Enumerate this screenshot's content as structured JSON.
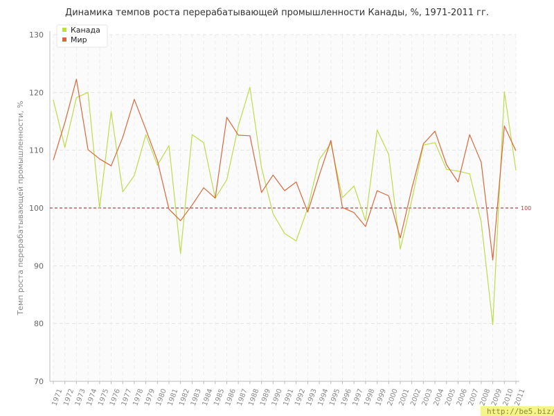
{
  "colors": {
    "canada": "#bddc4a",
    "world": "#d9663a",
    "reference": "#8b1a1a",
    "watermark_bg": "#f4f48a"
  },
  "watermark": "http://be5.biz/",
  "chart_data": {
    "type": "line",
    "title": "Динамика темпов роста перерабатывающей промышленности Канады, %, 1971-2011 гг.",
    "xlabel": "",
    "ylabel": "Темп роста перерабатывающей промышленности, %",
    "ylim": [
      70,
      130
    ],
    "yticks": [
      70,
      80,
      90,
      100,
      110,
      120,
      130
    ],
    "grid": true,
    "legend_position": "top-left",
    "reference_line": {
      "value": 100,
      "label": "100"
    },
    "categories": [
      "1971",
      "1972",
      "1973",
      "1974",
      "1975",
      "1976",
      "1977",
      "1978",
      "1979",
      "1980",
      "1981",
      "1982",
      "1983",
      "1984",
      "1985",
      "1986",
      "1987",
      "1988",
      "1989",
      "1990",
      "1991",
      "1992",
      "1993",
      "1994",
      "1995",
      "1996",
      "1997",
      "1998",
      "1999",
      "2000",
      "2001",
      "2002",
      "2003",
      "2004",
      "2005",
      "2006",
      "2007",
      "2008",
      "2009",
      "2010",
      "2011"
    ],
    "series": [
      {
        "name": "Канада",
        "color": "#bddc4a",
        "values": [
          118.7,
          110.5,
          119.1,
          120.0,
          100.0,
          116.7,
          102.8,
          105.6,
          112.7,
          107.4,
          110.8,
          92.1,
          112.7,
          111.3,
          101.7,
          104.9,
          114.2,
          120.9,
          107.0,
          99.0,
          95.6,
          94.3,
          100.0,
          108.4,
          111.2,
          101.8,
          103.8,
          97.8,
          113.5,
          109.3,
          92.9,
          101.4,
          110.9,
          111.3,
          106.7,
          106.4,
          105.9,
          97.6,
          79.8,
          120.1,
          106.5
        ]
      },
      {
        "name": "Мир",
        "color": "#d9663a",
        "values": [
          108.3,
          114.8,
          122.3,
          110.1,
          108.5,
          107.3,
          112.2,
          118.8,
          113.6,
          108.2,
          99.8,
          97.8,
          100.5,
          103.5,
          101.7,
          115.7,
          112.6,
          112.5,
          102.7,
          105.7,
          103.0,
          104.5,
          99.3,
          105.7,
          111.7,
          100.1,
          99.2,
          96.8,
          103.0,
          102.1,
          94.8,
          103.4,
          111.1,
          113.3,
          107.5,
          104.5,
          112.7,
          107.9,
          91.0,
          114.2,
          109.9
        ]
      }
    ]
  }
}
